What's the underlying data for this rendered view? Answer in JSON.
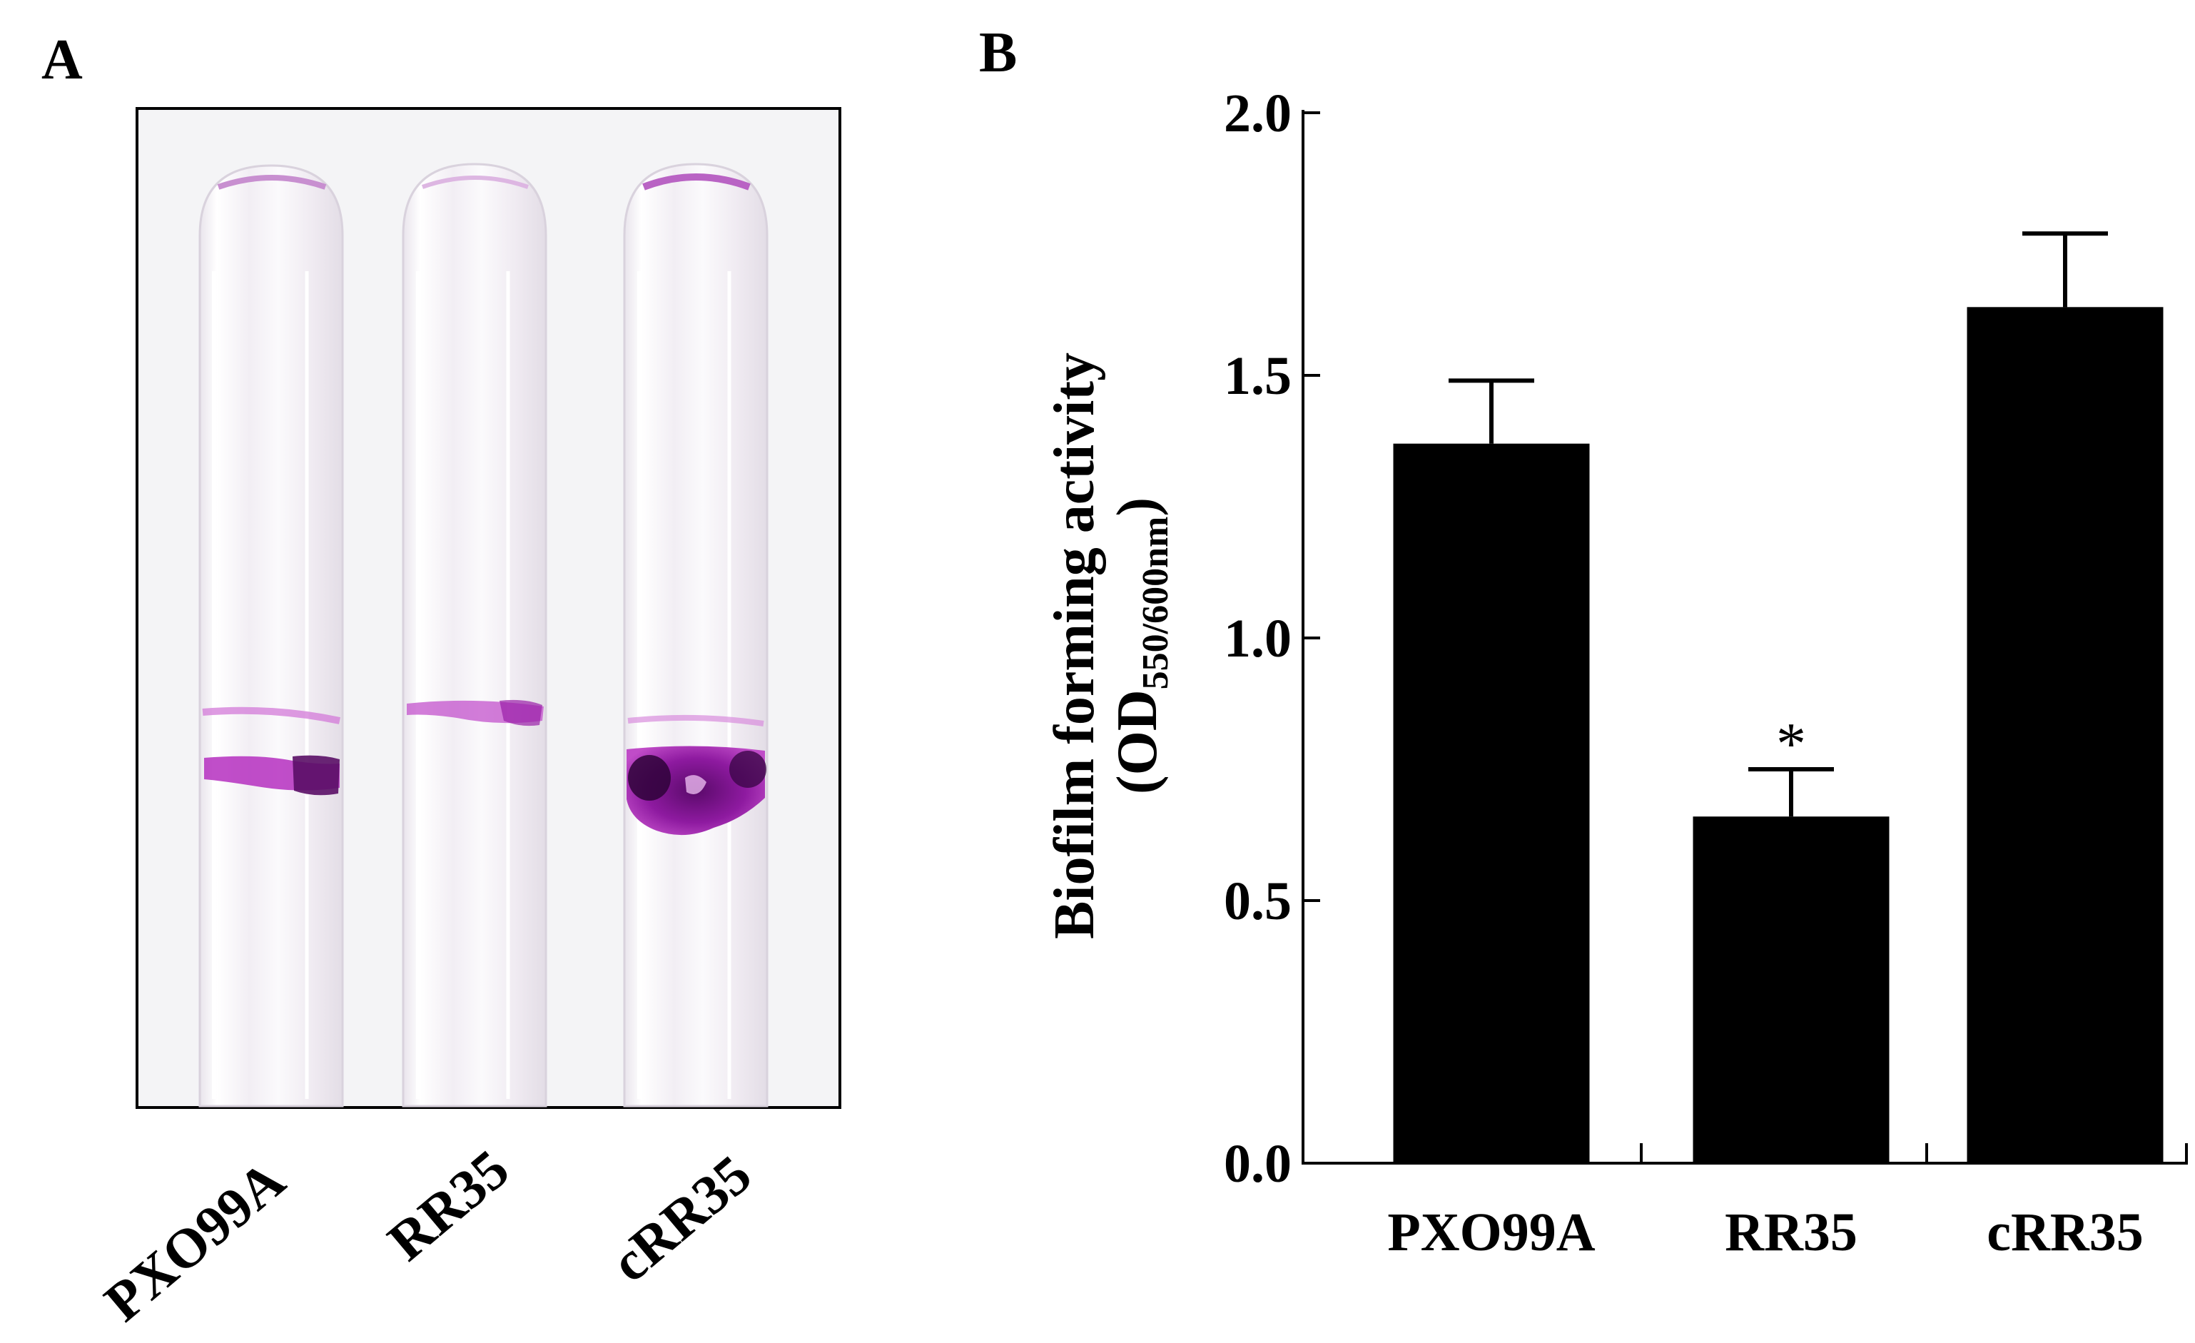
{
  "panels": {
    "a_label": "A",
    "b_label": "B"
  },
  "photo": {
    "tube_labels": [
      "PXO99A",
      "RR35",
      "cRR35"
    ],
    "stain_color": "#a020a8"
  },
  "chart_data": {
    "type": "bar",
    "categories": [
      "PXO99A",
      "RR35",
      "cRR35"
    ],
    "values": [
      1.37,
      0.66,
      1.63
    ],
    "errors": [
      0.12,
      0.09,
      0.14
    ],
    "significance": [
      "",
      "*",
      ""
    ],
    "ylabel_line1": "Biofilm forming activity",
    "ylabel_line2_main": "(OD",
    "ylabel_line2_sub": "550/600nm",
    "ylabel_line2_end": ")",
    "ylim": [
      0,
      2.0
    ],
    "yticks": [
      0.0,
      0.5,
      1.0,
      1.5,
      2.0
    ],
    "ytick_labels": [
      "0.0",
      "0.5",
      "1.0",
      "1.5",
      "2.0"
    ],
    "bar_color": "#000000"
  }
}
